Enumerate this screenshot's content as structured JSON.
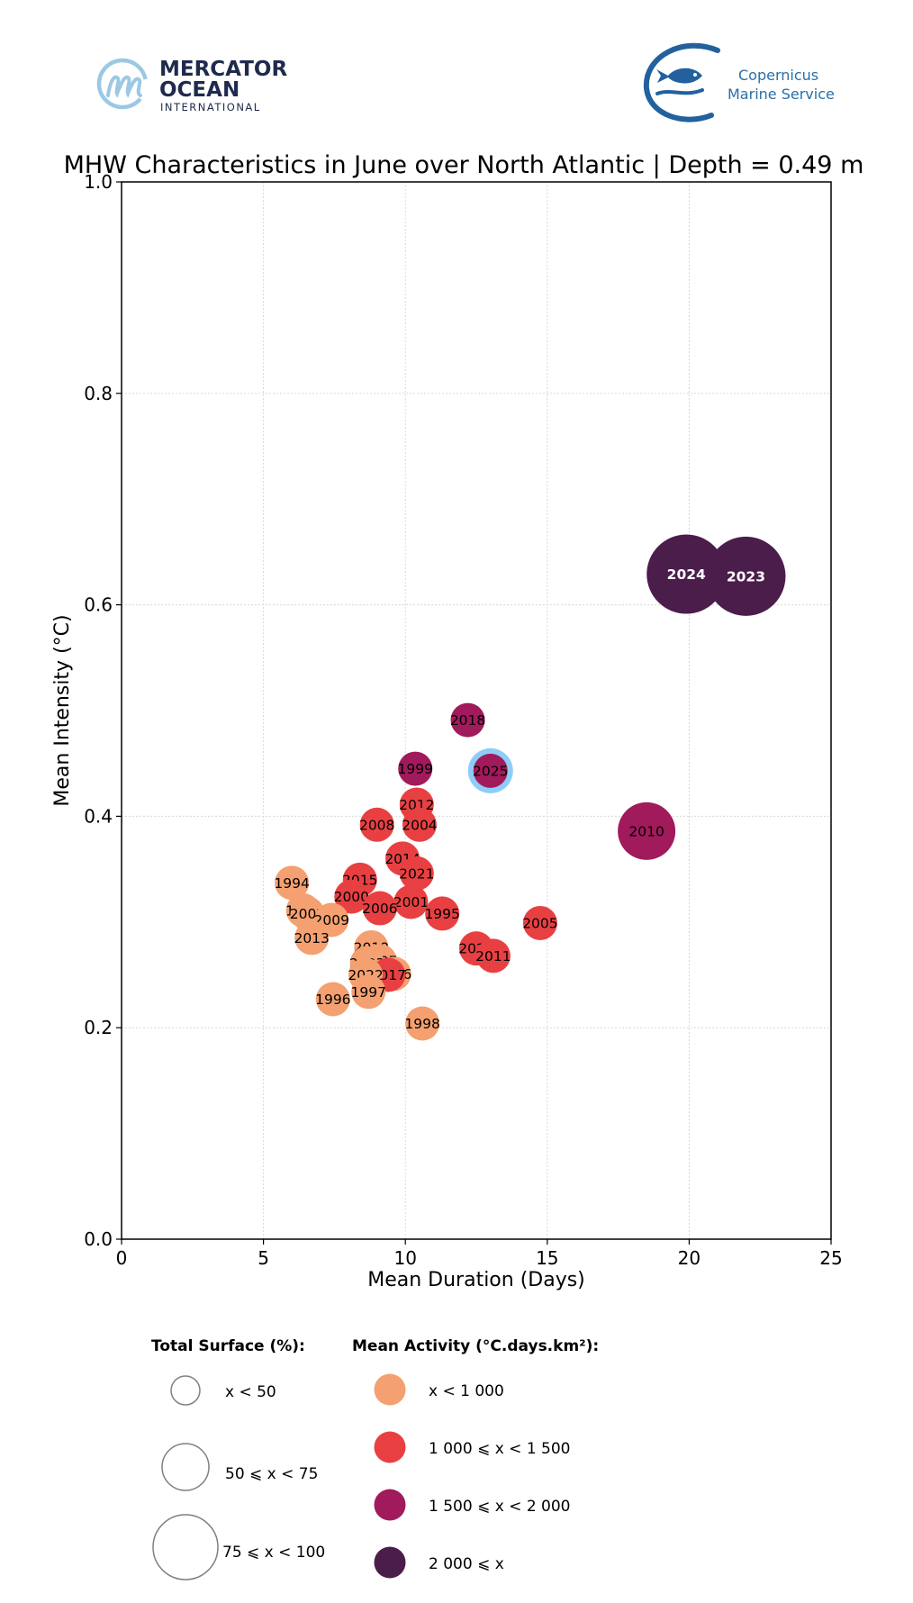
{
  "logos": {
    "left": {
      "line1": "MERCATOR",
      "line2": "OCEAN",
      "line3": "INTERNATIONAL",
      "icon": "mercator-m-icon"
    },
    "right": {
      "line1": "Copernicus",
      "line2": "Marine Service",
      "icon": "copernicus-fish-icon"
    }
  },
  "colors": {
    "activity_lt_1000": "#f4a070",
    "activity_1000_1500": "#e84042",
    "activity_1500_2000": "#a11a5b",
    "activity_ge_2000": "#4b1d4a",
    "highlight_ring": "#8ecdf7",
    "legend_circle_stroke": "#808080"
  },
  "chart_data": {
    "type": "scatter",
    "title": "MHW Characteristics in June over North Atlantic | Depth = 0.49 m",
    "xlabel": "Mean Duration (Days)",
    "ylabel": "Mean Intensity (°C)",
    "xlim": [
      0,
      25
    ],
    "ylim": [
      0.0,
      1.0
    ],
    "xticks": [
      "0",
      "5",
      "10",
      "15",
      "20",
      "25"
    ],
    "xtick_values": [
      0,
      5,
      10,
      15,
      20,
      25
    ],
    "yticks": [
      "0.0",
      "0.2",
      "0.4",
      "0.6",
      "0.8",
      "1.0"
    ],
    "ytick_values": [
      0.0,
      0.2,
      0.4,
      0.6,
      0.8,
      1.0
    ],
    "grid": true,
    "size_encoding": "Total Surface (%)",
    "color_encoding": "Mean Activity (°C.days.km²)",
    "highlighted_year": "2025",
    "points": [
      {
        "year": "2024",
        "x": 19.9,
        "y": 0.629,
        "surface_class": 2,
        "activity_class": 3
      },
      {
        "year": "2023",
        "x": 22.0,
        "y": 0.627,
        "surface_class": 2,
        "activity_class": 3
      },
      {
        "year": "2018",
        "x": 12.2,
        "y": 0.491,
        "surface_class": 0,
        "activity_class": 2
      },
      {
        "year": "2025",
        "x": 13.0,
        "y": 0.443,
        "surface_class": 0,
        "activity_class": 2
      },
      {
        "year": "1999",
        "x": 10.35,
        "y": 0.445,
        "surface_class": 0,
        "activity_class": 2
      },
      {
        "year": "2010",
        "x": 18.5,
        "y": 0.386,
        "surface_class": 1,
        "activity_class": 2
      },
      {
        "year": "2012",
        "x": 10.4,
        "y": 0.411,
        "surface_class": 0,
        "activity_class": 1
      },
      {
        "year": "2008",
        "x": 9.0,
        "y": 0.392,
        "surface_class": 0,
        "activity_class": 1
      },
      {
        "year": "2004",
        "x": 10.5,
        "y": 0.392,
        "surface_class": 0,
        "activity_class": 1
      },
      {
        "year": "2014",
        "x": 9.9,
        "y": 0.36,
        "surface_class": 0,
        "activity_class": 1
      },
      {
        "year": "2021",
        "x": 10.4,
        "y": 0.346,
        "surface_class": 0,
        "activity_class": 1
      },
      {
        "year": "2015",
        "x": 8.4,
        "y": 0.34,
        "surface_class": 0,
        "activity_class": 1
      },
      {
        "year": "1994",
        "x": 6.0,
        "y": 0.337,
        "surface_class": 0,
        "activity_class": 0
      },
      {
        "year": "2000",
        "x": 8.1,
        "y": 0.324,
        "surface_class": 0,
        "activity_class": 1
      },
      {
        "year": "2001",
        "x": 10.2,
        "y": 0.319,
        "surface_class": 0,
        "activity_class": 1
      },
      {
        "year": "2006",
        "x": 9.1,
        "y": 0.313,
        "surface_class": 0,
        "activity_class": 1
      },
      {
        "year": "1995",
        "x": 11.3,
        "y": 0.308,
        "surface_class": 0,
        "activity_class": 1
      },
      {
        "year": "1993",
        "x": 6.4,
        "y": 0.311,
        "surface_class": 0,
        "activity_class": 0
      },
      {
        "year": "2002",
        "x": 6.55,
        "y": 0.308,
        "surface_class": 0,
        "activity_class": 0
      },
      {
        "year": "2009",
        "x": 7.4,
        "y": 0.302,
        "surface_class": 0,
        "activity_class": 0
      },
      {
        "year": "2005",
        "x": 14.75,
        "y": 0.299,
        "surface_class": 0,
        "activity_class": 1
      },
      {
        "year": "2013",
        "x": 6.7,
        "y": 0.285,
        "surface_class": 0,
        "activity_class": 0
      },
      {
        "year": "2019",
        "x": 8.8,
        "y": 0.276,
        "surface_class": 0,
        "activity_class": 0
      },
      {
        "year": "2020",
        "x": 12.5,
        "y": 0.275,
        "surface_class": 0,
        "activity_class": 1
      },
      {
        "year": "2011",
        "x": 13.1,
        "y": 0.268,
        "surface_class": 0,
        "activity_class": 1
      },
      {
        "year": "2007",
        "x": 9.1,
        "y": 0.263,
        "surface_class": 0,
        "activity_class": 0
      },
      {
        "year": "2003",
        "x": 8.65,
        "y": 0.261,
        "surface_class": 0,
        "activity_class": 0
      },
      {
        "year": "2016",
        "x": 9.6,
        "y": 0.251,
        "surface_class": 0,
        "activity_class": 0
      },
      {
        "year": "2017",
        "x": 9.4,
        "y": 0.25,
        "surface_class": 0,
        "activity_class": 1
      },
      {
        "year": "2022",
        "x": 8.6,
        "y": 0.25,
        "surface_class": 0,
        "activity_class": 0
      },
      {
        "year": "1997",
        "x": 8.7,
        "y": 0.234,
        "surface_class": 0,
        "activity_class": 0
      },
      {
        "year": "1996",
        "x": 7.45,
        "y": 0.227,
        "surface_class": 0,
        "activity_class": 0
      },
      {
        "year": "1998",
        "x": 10.6,
        "y": 0.204,
        "surface_class": 0,
        "activity_class": 0
      }
    ],
    "legend": {
      "placement": "bottom",
      "surface": {
        "title": "Total Surface (%):",
        "items": [
          {
            "label": "x < 50"
          },
          {
            "label": "50 ⩽ x < 75"
          },
          {
            "label": "75 ⩽ x < 100"
          }
        ]
      },
      "activity": {
        "title": "Mean Activity (°C.days.km²):",
        "items": [
          {
            "label": "x < 1 000",
            "color": "#f4a070"
          },
          {
            "label": "1 000 ⩽ x < 1 500",
            "color": "#e84042"
          },
          {
            "label": "1 500 ⩽ x < 2 000",
            "color": "#a11a5b"
          },
          {
            "label": "2 000 ⩽ x",
            "color": "#4b1d4a"
          }
        ]
      }
    }
  }
}
